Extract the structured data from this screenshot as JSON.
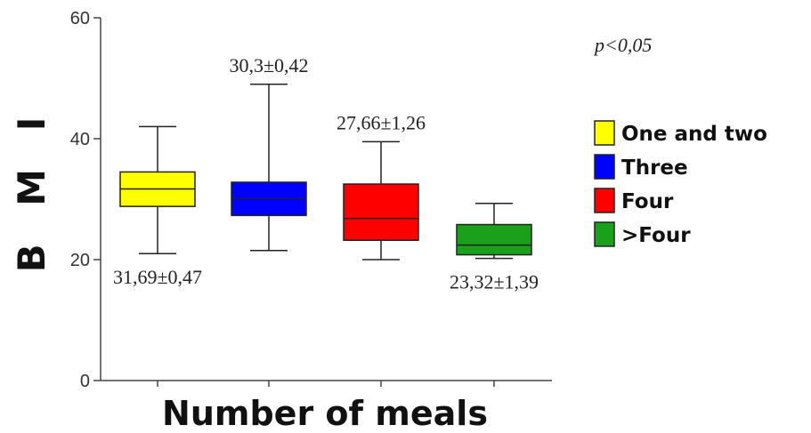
{
  "chart_data": {
    "type": "boxplot",
    "ylabel": "B M I",
    "xlabel": "Number of meals",
    "ylim": [
      0,
      60
    ],
    "yticks": [
      "0",
      "20",
      "40",
      "60"
    ],
    "grid": false,
    "legend_position": "right",
    "p_value": "p<0,05",
    "series": [
      {
        "name": "One and two",
        "color": "#ffff00",
        "whisker_low": 21,
        "q1": 28.8,
        "median": 31.7,
        "q3": 34.5,
        "whisker_high": 42,
        "annotation": "31,69±0,47",
        "annotation_position": "below"
      },
      {
        "name": "Three",
        "color": "#0000ff",
        "whisker_low": 21.5,
        "q1": 27.3,
        "median": 30.1,
        "q3": 32.8,
        "whisker_high": 49,
        "annotation": "30,3±0,42",
        "annotation_position": "above"
      },
      {
        "name": "Four",
        "color": "#ff0000",
        "whisker_low": 20,
        "q1": 23.2,
        "median": 26.8,
        "q3": 32.5,
        "whisker_high": 39.5,
        "annotation": "27,66±1,26",
        "annotation_position": "above"
      },
      {
        "name": ">Four",
        "color": "#1aa01a",
        "whisker_low": 20.2,
        "q1": 20.8,
        "median": 22.4,
        "q3": 25.8,
        "whisker_high": 29.3,
        "annotation": "23,32±1,39",
        "annotation_position": "below"
      }
    ]
  }
}
